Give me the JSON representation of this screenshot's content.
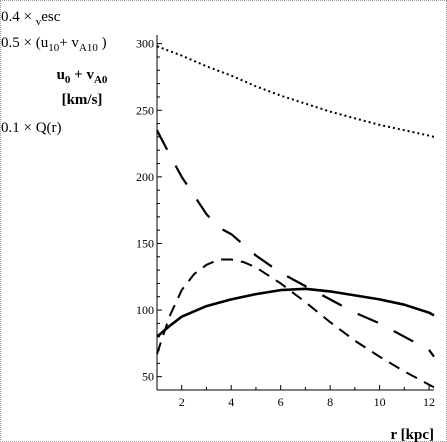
{
  "chart_data": {
    "type": "line",
    "title": "",
    "xlabel": "r [kpc]",
    "ylabel_lines": [
      "u₀ + vᴬ₀",
      "[km/s]"
    ],
    "xlim": [
      1,
      12.2
    ],
    "ylim": [
      40,
      305
    ],
    "x_ticks": [
      2,
      4,
      6,
      8,
      10,
      12
    ],
    "y_ticks": [
      50,
      100,
      150,
      200,
      250,
      300
    ],
    "grid": false,
    "legend_position": "top-left",
    "series": [
      {
        "name": "0.4 × v_esc",
        "label_parts": [
          "0.4 × ",
          "v",
          "esc",
          ""
        ],
        "style": "dotted",
        "x": [
          1,
          2,
          3,
          4,
          5,
          6,
          7,
          8,
          9,
          10,
          11,
          12,
          12.2
        ],
        "y": [
          298,
          291,
          283,
          276,
          268,
          261,
          255,
          249,
          244,
          239,
          235,
          231,
          230
        ]
      },
      {
        "name": "0.5 × (u_10 + v_A10)",
        "label_parts": [
          "0.5 × (u",
          "10",
          "+ v",
          "A10",
          " )"
        ],
        "style": "long-dash",
        "x": [
          1,
          1.5,
          2,
          2.5,
          3,
          3.5,
          4,
          5,
          6,
          7,
          8,
          9,
          10,
          11,
          12,
          12.2
        ],
        "y": [
          235,
          217,
          200,
          186,
          172,
          162,
          157,
          141,
          128,
          118,
          108,
          98,
          90,
          80,
          70,
          65
        ]
      },
      {
        "name": "u_0 + v_A0",
        "label_parts": [],
        "style": "solid",
        "x": [
          1,
          1.5,
          2,
          3,
          4,
          5,
          6,
          7,
          8,
          9,
          10,
          11,
          12,
          12.2
        ],
        "y": [
          80,
          88,
          95,
          103,
          108,
          112,
          115,
          116,
          114,
          111,
          108,
          104,
          98,
          96
        ],
        "note": "labeled by the y-axis title"
      },
      {
        "name": "0.1 × Q(r)",
        "label_parts": [
          "0.1 × Q(r)"
        ],
        "style": "dash",
        "x": [
          1,
          1.5,
          2,
          2.5,
          3,
          3.5,
          4,
          4.5,
          5,
          6,
          7,
          8,
          9,
          10,
          11,
          12,
          12.2
        ],
        "y": [
          67,
          95,
          115,
          127,
          134,
          138,
          138,
          136,
          132,
          120,
          106,
          91,
          77,
          65,
          54,
          44,
          42
        ]
      }
    ]
  }
}
